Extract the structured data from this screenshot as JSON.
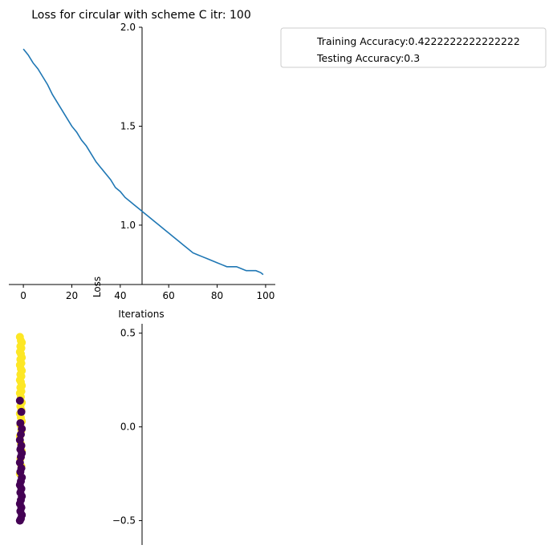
{
  "chart_data": [
    {
      "type": "line",
      "title": "Loss for circular with scheme C itr: 100",
      "xlabel": "Iterations",
      "ylabel": "Loss",
      "xlim": [
        -6,
        104
      ],
      "ylim": [
        0.7,
        2.0
      ],
      "xticks": [
        0,
        20,
        40,
        60,
        80,
        100
      ],
      "yticks": [
        1.0,
        1.5,
        2.0
      ],
      "xtick_labels": [
        "0",
        "20",
        "40",
        "60",
        "80",
        "100"
      ],
      "ytick_labels": [
        "1.0",
        "1.5",
        "2.0"
      ],
      "grid": false,
      "series_color": "#1f77b4",
      "series": [
        {
          "x": [
            0,
            2,
            4,
            6,
            8,
            10,
            12,
            14,
            16,
            18,
            20,
            22,
            24,
            26,
            28,
            30,
            32,
            34,
            36,
            38,
            40,
            42,
            44,
            46,
            48,
            50,
            52,
            54,
            56,
            58,
            60,
            62,
            64,
            66,
            68,
            70,
            72,
            74,
            76,
            78,
            80,
            82,
            84,
            86,
            88,
            90,
            92,
            94,
            96,
            98,
            99
          ],
          "values": [
            1.89,
            1.86,
            1.82,
            1.79,
            1.75,
            1.71,
            1.66,
            1.62,
            1.58,
            1.54,
            1.5,
            1.47,
            1.43,
            1.4,
            1.36,
            1.32,
            1.29,
            1.26,
            1.23,
            1.19,
            1.17,
            1.14,
            1.12,
            1.1,
            1.08,
            1.06,
            1.04,
            1.02,
            1.0,
            0.98,
            0.96,
            0.94,
            0.92,
            0.9,
            0.88,
            0.86,
            0.85,
            0.84,
            0.83,
            0.82,
            0.81,
            0.8,
            0.79,
            0.79,
            0.79,
            0.78,
            0.77,
            0.77,
            0.77,
            0.76,
            0.75
          ]
        }
      ],
      "legend": {
        "placement": "outside-top-right",
        "entries": [
          "Training Accuracy:0.4222222222222222",
          "Testing Accuracy:0.3"
        ]
      }
    },
    {
      "type": "scatter",
      "ylim": [
        -0.63,
        0.55
      ],
      "yticks": [
        -0.5,
        0.0,
        0.5
      ],
      "ytick_labels": [
        "−0.5",
        "0.0",
        "0.5"
      ],
      "x_value": 0.0,
      "class_colors": {
        "class_1": "#fde725",
        "class_0": "#440154"
      },
      "points": {
        "class_1_y": [
          0.48,
          0.46,
          0.45,
          0.43,
          0.42,
          0.4,
          0.39,
          0.37,
          0.36,
          0.34,
          0.33,
          0.31,
          0.3,
          0.28,
          0.27,
          0.25,
          0.24,
          0.22,
          0.21,
          0.19,
          0.18,
          0.16,
          0.13,
          0.11,
          0.09,
          0.07,
          0.05,
          0.03,
          0.01,
          -0.02,
          -0.05,
          -0.09,
          -0.13,
          -0.17,
          -0.21,
          -0.25
        ],
        "class_0_y": [
          0.14,
          0.08,
          0.02,
          -0.01,
          -0.04,
          -0.07,
          -0.1,
          -0.12,
          -0.14,
          -0.16,
          -0.19,
          -0.22,
          -0.24,
          -0.27,
          -0.29,
          -0.31,
          -0.33,
          -0.35,
          -0.37,
          -0.39,
          -0.41,
          -0.43,
          -0.45,
          -0.47,
          -0.49,
          -0.5
        ]
      }
    }
  ]
}
